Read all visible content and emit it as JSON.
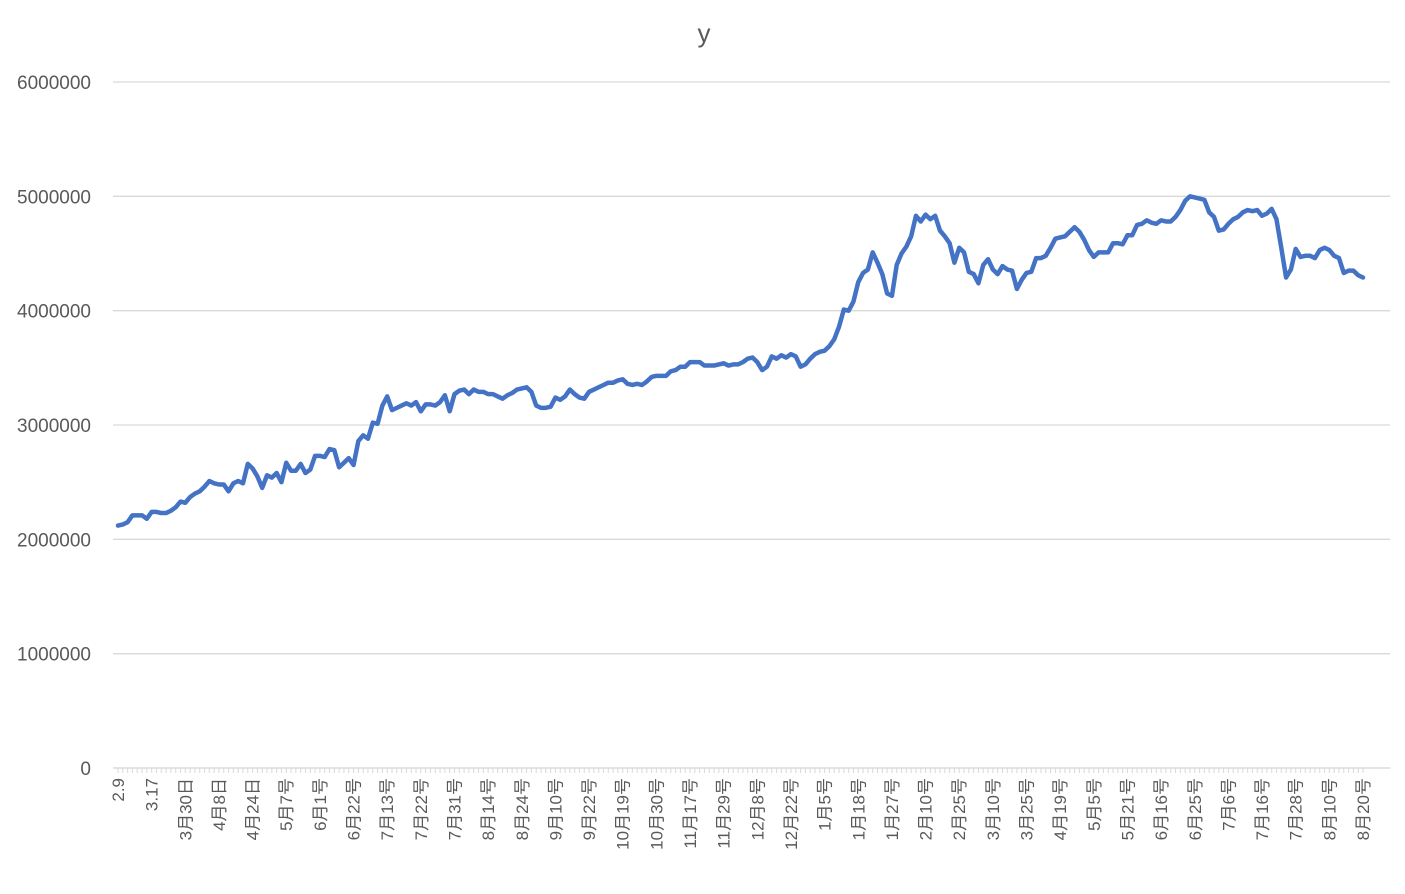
{
  "chart_data": {
    "type": "line",
    "title": "y",
    "color": "#4472c4",
    "grid": true,
    "ylim": [
      0,
      6000000
    ],
    "yticks": [
      0,
      1000000,
      2000000,
      3000000,
      4000000,
      5000000,
      6000000
    ],
    "categories": [
      "2.9",
      null,
      null,
      null,
      null,
      null,
      null,
      "3.17",
      null,
      null,
      null,
      null,
      null,
      null,
      "3月30日",
      null,
      null,
      null,
      null,
      null,
      null,
      "4月8日",
      null,
      null,
      null,
      null,
      null,
      null,
      "4月24日",
      null,
      null,
      null,
      null,
      null,
      null,
      "5月7号",
      null,
      null,
      null,
      null,
      null,
      null,
      "6月1号",
      null,
      null,
      null,
      null,
      null,
      null,
      "6月22号",
      null,
      null,
      null,
      null,
      null,
      null,
      "7月13号",
      null,
      null,
      null,
      null,
      null,
      null,
      "7月22号",
      null,
      null,
      null,
      null,
      null,
      null,
      "7月31号",
      null,
      null,
      null,
      null,
      null,
      null,
      "8月14号",
      null,
      null,
      null,
      null,
      null,
      null,
      "8月24号",
      null,
      null,
      null,
      null,
      null,
      null,
      "9月10号",
      null,
      null,
      null,
      null,
      null,
      null,
      "9月22号",
      null,
      null,
      null,
      null,
      null,
      null,
      "10月19号",
      null,
      null,
      null,
      null,
      null,
      null,
      "10月30号",
      null,
      null,
      null,
      null,
      null,
      null,
      "11月17号",
      null,
      null,
      null,
      null,
      null,
      null,
      "11月29号",
      null,
      null,
      null,
      null,
      null,
      null,
      "12月8号",
      null,
      null,
      null,
      null,
      null,
      null,
      "12月22号",
      null,
      null,
      null,
      null,
      null,
      null,
      "1月5号",
      null,
      null,
      null,
      null,
      null,
      null,
      "1月18号",
      null,
      null,
      null,
      null,
      null,
      null,
      "1月27号",
      null,
      null,
      null,
      null,
      null,
      null,
      "2月10号",
      null,
      null,
      null,
      null,
      null,
      null,
      "2月25号",
      null,
      null,
      null,
      null,
      null,
      null,
      "3月10号",
      null,
      null,
      null,
      null,
      null,
      null,
      "3月25号",
      null,
      null,
      null,
      null,
      null,
      null,
      "4月19号",
      null,
      null,
      null,
      null,
      null,
      null,
      "5月5号",
      null,
      null,
      null,
      null,
      null,
      null,
      "5月21号",
      null,
      null,
      null,
      null,
      null,
      null,
      "6月16号",
      null,
      null,
      null,
      null,
      null,
      null,
      "6月25号",
      null,
      null,
      null,
      null,
      null,
      null,
      "7月6号",
      null,
      null,
      null,
      null,
      null,
      null,
      "7月16号",
      null,
      null,
      null,
      null,
      null,
      null,
      "7月28号",
      null,
      null,
      null,
      null,
      null,
      null,
      "8月10号",
      null,
      null,
      null,
      null,
      null,
      null,
      "8月20号"
    ],
    "values": [
      2120000,
      2130000,
      2150000,
      2210000,
      2210000,
      2210000,
      2180000,
      2240000,
      2240000,
      2230000,
      2230000,
      2250000,
      2280000,
      2330000,
      2320000,
      2370000,
      2400000,
      2420000,
      2460000,
      2510000,
      2490000,
      2480000,
      2480000,
      2420000,
      2490000,
      2510000,
      2490000,
      2660000,
      2620000,
      2550000,
      2450000,
      2560000,
      2540000,
      2580000,
      2500000,
      2670000,
      2600000,
      2600000,
      2660000,
      2580000,
      2610000,
      2730000,
      2730000,
      2720000,
      2790000,
      2780000,
      2630000,
      2670000,
      2710000,
      2650000,
      2860000,
      2910000,
      2880000,
      3020000,
      3010000,
      3170000,
      3250000,
      3130000,
      3150000,
      3170000,
      3190000,
      3170000,
      3200000,
      3120000,
      3180000,
      3180000,
      3170000,
      3200000,
      3260000,
      3120000,
      3270000,
      3300000,
      3310000,
      3270000,
      3310000,
      3290000,
      3290000,
      3270000,
      3270000,
      3250000,
      3230000,
      3260000,
      3280000,
      3310000,
      3320000,
      3330000,
      3290000,
      3170000,
      3150000,
      3150000,
      3160000,
      3240000,
      3220000,
      3250000,
      3310000,
      3270000,
      3240000,
      3230000,
      3290000,
      3310000,
      3330000,
      3350000,
      3370000,
      3370000,
      3390000,
      3400000,
      3360000,
      3350000,
      3360000,
      3350000,
      3380000,
      3420000,
      3430000,
      3430000,
      3430000,
      3470000,
      3480000,
      3510000,
      3510000,
      3550000,
      3550000,
      3550000,
      3520000,
      3520000,
      3520000,
      3530000,
      3540000,
      3520000,
      3530000,
      3530000,
      3550000,
      3580000,
      3590000,
      3550000,
      3480000,
      3510000,
      3600000,
      3580000,
      3610000,
      3590000,
      3620000,
      3600000,
      3510000,
      3530000,
      3580000,
      3620000,
      3640000,
      3650000,
      3690000,
      3750000,
      3860000,
      4010000,
      4000000,
      4080000,
      4250000,
      4330000,
      4360000,
      4510000,
      4420000,
      4320000,
      4150000,
      4130000,
      4400000,
      4500000,
      4560000,
      4650000,
      4830000,
      4780000,
      4840000,
      4800000,
      4830000,
      4700000,
      4650000,
      4590000,
      4420000,
      4550000,
      4510000,
      4340000,
      4320000,
      4240000,
      4400000,
      4450000,
      4360000,
      4320000,
      4390000,
      4360000,
      4350000,
      4190000,
      4270000,
      4330000,
      4340000,
      4460000,
      4460000,
      4480000,
      4550000,
      4630000,
      4640000,
      4650000,
      4690000,
      4730000,
      4690000,
      4620000,
      4530000,
      4470000,
      4510000,
      4510000,
      4510000,
      4590000,
      4590000,
      4580000,
      4660000,
      4660000,
      4750000,
      4760000,
      4790000,
      4770000,
      4760000,
      4790000,
      4780000,
      4780000,
      4820000,
      4880000,
      4960000,
      5000000,
      4990000,
      4980000,
      4970000,
      4860000,
      4820000,
      4700000,
      4710000,
      4760000,
      4800000,
      4820000,
      4860000,
      4880000,
      4870000,
      4880000,
      4830000,
      4850000,
      4890000,
      4800000,
      4550000,
      4290000,
      4360000,
      4540000,
      4470000,
      4480000,
      4480000,
      4460000,
      4530000,
      4550000,
      4530000,
      4480000,
      4460000,
      4330000,
      4350000,
      4350000,
      4310000,
      4290000
    ]
  }
}
